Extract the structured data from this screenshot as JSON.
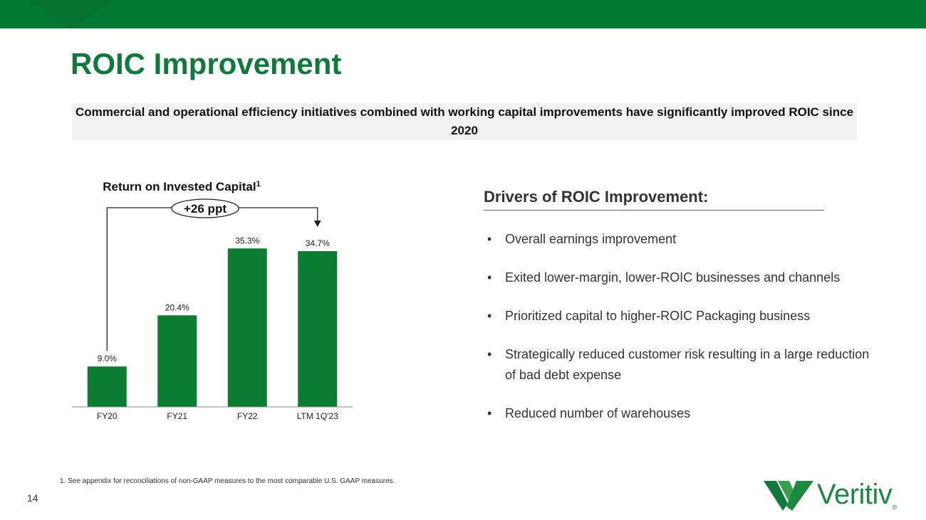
{
  "page": {
    "title": "ROIC Improvement",
    "subtitle": "Commercial and operational efficiency initiatives combined with working capital improvements have significantly improved ROIC since 2020",
    "page_number": "14",
    "footnote": "1. See appendix for reconciliations of non-GAAP measures to the most comparable U.S. GAAP measures."
  },
  "brand": {
    "primary_color": "#007a33",
    "title_color": "#0f7a3a",
    "logo_text": "Veritiv",
    "logo_mark": "®"
  },
  "chart_data": {
    "type": "bar",
    "title": "Return on Invested Capital",
    "title_superscript": "1",
    "categories": [
      "FY20",
      "FY21",
      "FY22",
      "LTM 1Q'23"
    ],
    "values": [
      9.0,
      20.4,
      35.3,
      34.7
    ],
    "value_labels": [
      "9.0%",
      "20.4%",
      "35.3%",
      "34.7%"
    ],
    "bar_color": "#0a7d32",
    "ylim": [
      0,
      42
    ],
    "grid": false,
    "annotation": {
      "label": "+26 ppt",
      "from_category": "FY20",
      "to_category": "LTM 1Q'23"
    }
  },
  "drivers": {
    "title": "Drivers of ROIC Improvement:",
    "bullet_glyph": "•",
    "items": [
      "Overall earnings improvement",
      "Exited lower-margin, lower-ROIC businesses and channels",
      "Prioritized capital to higher-ROIC Packaging business",
      "Strategically reduced customer risk resulting in a large reduction of bad debt expense",
      "Reduced number of warehouses"
    ]
  }
}
